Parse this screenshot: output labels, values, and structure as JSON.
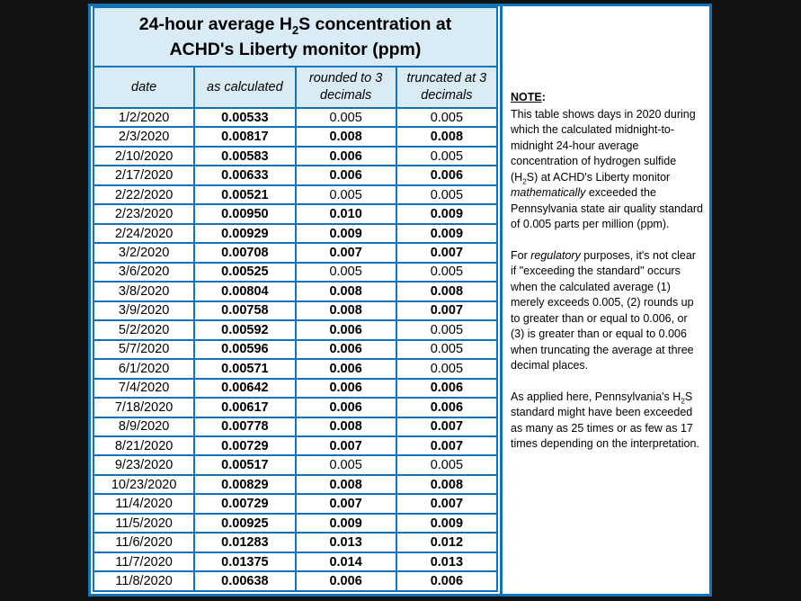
{
  "colors": {
    "border_blue": "#1273bd",
    "header_fill": "#d9ebf5",
    "page_background": "#121212"
  },
  "table": {
    "title_lines": [
      [
        {
          "t": "24-hour average H"
        },
        {
          "t": "2",
          "sub": true
        },
        {
          "t": "S concentration at"
        }
      ],
      [
        {
          "t": "ACHD's Liberty monitor (ppm)"
        }
      ]
    ],
    "columns": [
      "date",
      "as calculated",
      "rounded to 3 decimals",
      "truncated at 3 decimals"
    ],
    "rows": [
      {
        "date": "1/2/2020",
        "calc": "0.00533",
        "rounded": "0.005",
        "rounded_bold": false,
        "truncated": "0.005",
        "truncated_bold": false
      },
      {
        "date": "2/3/2020",
        "calc": "0.00817",
        "rounded": "0.008",
        "rounded_bold": true,
        "truncated": "0.008",
        "truncated_bold": true
      },
      {
        "date": "2/10/2020",
        "calc": "0.00583",
        "rounded": "0.006",
        "rounded_bold": true,
        "truncated": "0.005",
        "truncated_bold": false
      },
      {
        "date": "2/17/2020",
        "calc": "0.00633",
        "rounded": "0.006",
        "rounded_bold": true,
        "truncated": "0.006",
        "truncated_bold": true
      },
      {
        "date": "2/22/2020",
        "calc": "0.00521",
        "rounded": "0.005",
        "rounded_bold": false,
        "truncated": "0.005",
        "truncated_bold": false
      },
      {
        "date": "2/23/2020",
        "calc": "0.00950",
        "rounded": "0.010",
        "rounded_bold": true,
        "truncated": "0.009",
        "truncated_bold": true
      },
      {
        "date": "2/24/2020",
        "calc": "0.00929",
        "rounded": "0.009",
        "rounded_bold": true,
        "truncated": "0.009",
        "truncated_bold": true
      },
      {
        "date": "3/2/2020",
        "calc": "0.00708",
        "rounded": "0.007",
        "rounded_bold": true,
        "truncated": "0.007",
        "truncated_bold": true
      },
      {
        "date": "3/6/2020",
        "calc": "0.00525",
        "rounded": "0.005",
        "rounded_bold": false,
        "truncated": "0.005",
        "truncated_bold": false
      },
      {
        "date": "3/8/2020",
        "calc": "0.00804",
        "rounded": "0.008",
        "rounded_bold": true,
        "truncated": "0.008",
        "truncated_bold": true
      },
      {
        "date": "3/9/2020",
        "calc": "0.00758",
        "rounded": "0.008",
        "rounded_bold": true,
        "truncated": "0.007",
        "truncated_bold": true
      },
      {
        "date": "5/2/2020",
        "calc": "0.00592",
        "rounded": "0.006",
        "rounded_bold": true,
        "truncated": "0.005",
        "truncated_bold": false
      },
      {
        "date": "5/7/2020",
        "calc": "0.00596",
        "rounded": "0.006",
        "rounded_bold": true,
        "truncated": "0.005",
        "truncated_bold": false
      },
      {
        "date": "6/1/2020",
        "calc": "0.00571",
        "rounded": "0.006",
        "rounded_bold": true,
        "truncated": "0.005",
        "truncated_bold": false
      },
      {
        "date": "7/4/2020",
        "calc": "0.00642",
        "rounded": "0.006",
        "rounded_bold": true,
        "truncated": "0.006",
        "truncated_bold": true
      },
      {
        "date": "7/18/2020",
        "calc": "0.00617",
        "rounded": "0.006",
        "rounded_bold": true,
        "truncated": "0.006",
        "truncated_bold": true
      },
      {
        "date": "8/9/2020",
        "calc": "0.00778",
        "rounded": "0.008",
        "rounded_bold": true,
        "truncated": "0.007",
        "truncated_bold": true
      },
      {
        "date": "8/21/2020",
        "calc": "0.00729",
        "rounded": "0.007",
        "rounded_bold": true,
        "truncated": "0.007",
        "truncated_bold": true
      },
      {
        "date": "9/23/2020",
        "calc": "0.00517",
        "rounded": "0.005",
        "rounded_bold": false,
        "truncated": "0.005",
        "truncated_bold": false
      },
      {
        "date": "10/23/2020",
        "calc": "0.00829",
        "rounded": "0.008",
        "rounded_bold": true,
        "truncated": "0.008",
        "truncated_bold": true
      },
      {
        "date": "11/4/2020",
        "calc": "0.00729",
        "rounded": "0.007",
        "rounded_bold": true,
        "truncated": "0.007",
        "truncated_bold": true
      },
      {
        "date": "11/5/2020",
        "calc": "0.00925",
        "rounded": "0.009",
        "rounded_bold": true,
        "truncated": "0.009",
        "truncated_bold": true
      },
      {
        "date": "11/6/2020",
        "calc": "0.01283",
        "rounded": "0.013",
        "rounded_bold": true,
        "truncated": "0.012",
        "truncated_bold": true
      },
      {
        "date": "11/7/2020",
        "calc": "0.01375",
        "rounded": "0.014",
        "rounded_bold": true,
        "truncated": "0.013",
        "truncated_bold": true
      },
      {
        "date": "11/8/2020",
        "calc": "0.00638",
        "rounded": "0.006",
        "rounded_bold": true,
        "truncated": "0.006",
        "truncated_bold": true
      }
    ]
  },
  "note": {
    "heading": "NOTE",
    "heading_suffix": ":",
    "paragraphs": [
      {
        "segments": [
          {
            "t": "This table shows days in 2020 during which the calculated midnight-to-midnight 24-hour average concentration of hydrogen sulfide (H"
          },
          {
            "t": "2",
            "sub": true
          },
          {
            "t": "S) at ACHD's Liberty monitor "
          },
          {
            "t": "mathematically",
            "i": true
          },
          {
            "t": " exceeded the Pennsylvania state air quality standard of 0.005 parts per million (ppm)."
          }
        ]
      },
      {
        "segments": [
          {
            "t": "For "
          },
          {
            "t": "regulatory",
            "i": true
          },
          {
            "t": " purposes, it's not clear if \"exceeding the standard\" occurs when the calculated average (1) merely exceeds 0.005, (2) rounds up to greater than or equal to 0.006, or (3) is greater than or equal to 0.006 when truncating the average at three decimal places."
          }
        ]
      },
      {
        "segments": [
          {
            "t": "As applied here, Pennsylvania's H"
          },
          {
            "t": "2",
            "sub": true
          },
          {
            "t": "S standard might have been exceeded as many as 25 times or as few as 17 times depending on the interpretation."
          }
        ]
      }
    ]
  }
}
